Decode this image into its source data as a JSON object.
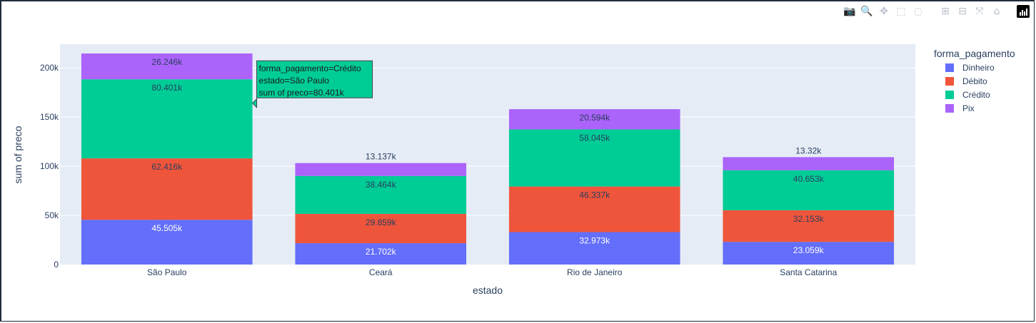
{
  "modebar": {
    "buttons": [
      {
        "name": "camera-icon",
        "glyph": "📷"
      },
      {
        "name": "zoom-icon",
        "glyph": "🔍"
      },
      {
        "name": "pan-icon",
        "glyph": "✥"
      },
      {
        "name": "box-select-icon",
        "glyph": "⬚"
      },
      {
        "name": "lasso-select-icon",
        "glyph": "◌"
      },
      {
        "name": "zoom-in-icon",
        "glyph": "⊞"
      },
      {
        "name": "zoom-out-icon",
        "glyph": "⊟"
      },
      {
        "name": "autoscale-icon",
        "glyph": "⤧"
      },
      {
        "name": "reset-axes-icon",
        "glyph": "⌂"
      }
    ]
  },
  "chart_data": {
    "type": "bar",
    "barmode": "stack",
    "categories": [
      "São Paulo",
      "Ceará",
      "Rio de Janeiro",
      "Santa Catarina"
    ],
    "series": [
      {
        "name": "Dinheiro",
        "color": "#636efa",
        "values": [
          45505,
          21702,
          32973,
          23059
        ],
        "labels": [
          "45.505k",
          "21.702k",
          "32.973k",
          "23.059k"
        ]
      },
      {
        "name": "Débito",
        "color": "#ef553b",
        "values": [
          62416,
          29859,
          46337,
          32153
        ],
        "labels": [
          "62.416k",
          "29.859k",
          "46.337k",
          "32.153k"
        ]
      },
      {
        "name": "Crédito",
        "color": "#00cc96",
        "values": [
          80401,
          38464,
          58045,
          40653
        ],
        "labels": [
          "80.401k",
          "38.464k",
          "58.045k",
          "40.653k"
        ]
      },
      {
        "name": "Pix",
        "color": "#ab63fa",
        "values": [
          26246,
          13137,
          20594,
          13320
        ],
        "labels": [
          "26.246k",
          "13.137k",
          "20.594k",
          "13.32k"
        ]
      }
    ],
    "xlabel": "estado",
    "ylabel": "sum of preco",
    "ylim": [
      0,
      224000
    ],
    "yticks": [
      0,
      50000,
      100000,
      150000,
      200000
    ],
    "ytick_labels": [
      "0",
      "50k",
      "100k",
      "150k",
      "200k"
    ],
    "legend_title": "forma_pagamento",
    "legend_position": "right",
    "grid": true,
    "plot_bg": "#e5ecf6",
    "tooltip": {
      "category_index": 0,
      "series_index": 2,
      "lines": [
        "forma_pagamento=Crédito",
        "estado=São Paulo",
        "sum of preco=80.401k"
      ]
    }
  }
}
